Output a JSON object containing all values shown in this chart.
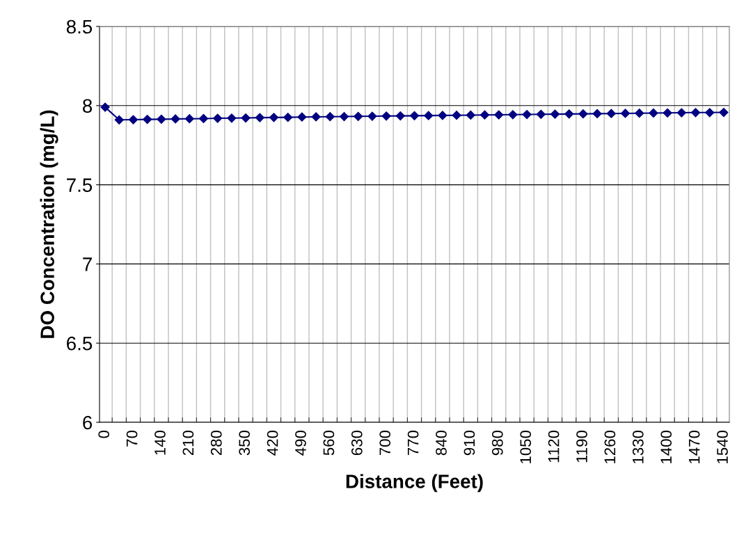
{
  "chart_data": {
    "type": "line",
    "xlabel": "Distance (Feet)",
    "ylabel": "DO Concentration (mg/L)",
    "categories": [
      "0",
      null,
      "70",
      null,
      "140",
      null,
      "210",
      null,
      "280",
      null,
      "350",
      null,
      "420",
      null,
      "490",
      null,
      "560",
      null,
      "630",
      null,
      "700",
      null,
      "770",
      null,
      "840",
      null,
      "910",
      null,
      "980",
      null,
      "1050",
      null,
      "1120",
      null,
      "1190",
      null,
      "1260",
      null,
      "1330",
      null,
      "1400",
      null,
      "1470",
      null,
      "1540"
    ],
    "series": [
      {
        "color": "#000080",
        "values": [
          7.99,
          7.91,
          7.911,
          7.913,
          7.914,
          7.916,
          7.917,
          7.918,
          7.92,
          7.921,
          7.922,
          7.924,
          7.925,
          7.926,
          7.928,
          7.929,
          7.93,
          7.931,
          7.932,
          7.933,
          7.934,
          7.935,
          7.936,
          7.937,
          7.938,
          7.939,
          7.94,
          7.941,
          7.942,
          7.943,
          7.944,
          7.945,
          7.946,
          7.947,
          7.948,
          7.949,
          7.95,
          7.951,
          7.952,
          7.953,
          7.954,
          7.955,
          7.956,
          7.956,
          7.957
        ]
      }
    ],
    "ylim": [
      6,
      8.5
    ],
    "yticks": [
      6,
      6.5,
      7,
      7.5,
      8,
      8.5
    ],
    "grid": true,
    "marker": "diamond",
    "line_style": "solid",
    "legend": false
  }
}
